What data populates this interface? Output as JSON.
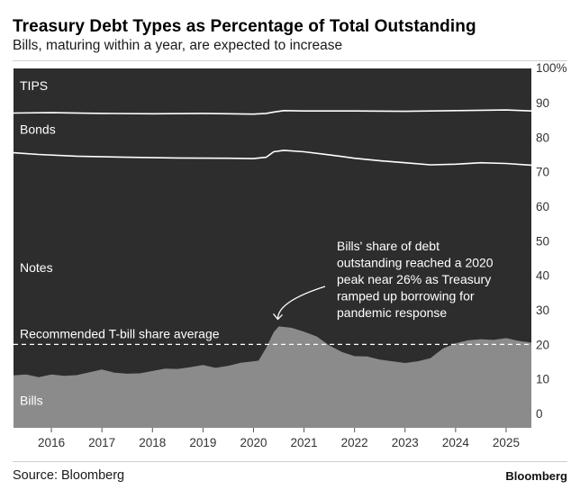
{
  "title": "Treasury Debt Types as Percentage of Total Outstanding",
  "subtitle": "Bills, maturing within a year, are expected to increase",
  "source": "Source: Bloomberg",
  "brand": "Bloomberg",
  "colors": {
    "background": "#2d2d2d",
    "bills_fill": "#8b8b8b",
    "lines": "#ffffff",
    "dashed_line": "#ffffff",
    "axis_text": "#333333",
    "plot_text": "#ffffff"
  },
  "chart_data": {
    "type": "area",
    "title": "Treasury Debt Types as Percentage of Total Outstanding",
    "subtitle": "Bills, maturing within a year, are expected to increase",
    "xlabel": "",
    "ylabel": "",
    "xlim": [
      2015.25,
      2025.5
    ],
    "ylim": [
      0,
      100
    ],
    "y_ticks": [
      {
        "value": 100,
        "label": "100%"
      },
      {
        "value": 90,
        "label": "90"
      },
      {
        "value": 80,
        "label": "80"
      },
      {
        "value": 70,
        "label": "70"
      },
      {
        "value": 60,
        "label": "60"
      },
      {
        "value": 50,
        "label": "50"
      },
      {
        "value": 40,
        "label": "40"
      },
      {
        "value": 30,
        "label": "30"
      },
      {
        "value": 20,
        "label": "20"
      },
      {
        "value": 10,
        "label": "10"
      },
      {
        "value": 0,
        "label": "0"
      }
    ],
    "x_ticks": [
      {
        "value": 2016,
        "label": "2016"
      },
      {
        "value": 2017,
        "label": "2017"
      },
      {
        "value": 2018,
        "label": "2018"
      },
      {
        "value": 2019,
        "label": "2019"
      },
      {
        "value": 2020,
        "label": "2020"
      },
      {
        "value": 2021,
        "label": "2021"
      },
      {
        "value": 2022,
        "label": "2022"
      },
      {
        "value": 2023,
        "label": "2023"
      },
      {
        "value": 2024,
        "label": "2024"
      },
      {
        "value": 2025,
        "label": "2025"
      }
    ],
    "series": [
      {
        "name": "Bills",
        "role": "area",
        "points": [
          [
            2015.25,
            11.0
          ],
          [
            2015.5,
            11.3
          ],
          [
            2015.75,
            10.5
          ],
          [
            2016.0,
            11.3
          ],
          [
            2016.25,
            10.9
          ],
          [
            2016.5,
            11.1
          ],
          [
            2016.75,
            11.9
          ],
          [
            2017.0,
            12.7
          ],
          [
            2017.25,
            11.8
          ],
          [
            2017.5,
            11.5
          ],
          [
            2017.75,
            11.6
          ],
          [
            2018.0,
            12.3
          ],
          [
            2018.25,
            13.0
          ],
          [
            2018.5,
            12.9
          ],
          [
            2018.75,
            13.4
          ],
          [
            2019.0,
            14.0
          ],
          [
            2019.25,
            13.2
          ],
          [
            2019.5,
            13.8
          ],
          [
            2019.75,
            14.7
          ],
          [
            2020.0,
            15.1
          ],
          [
            2020.1,
            15.3
          ],
          [
            2020.25,
            19.0
          ],
          [
            2020.4,
            23.5
          ],
          [
            2020.5,
            25.2
          ],
          [
            2020.75,
            24.8
          ],
          [
            2021.0,
            23.7
          ],
          [
            2021.25,
            22.3
          ],
          [
            2021.5,
            19.7
          ],
          [
            2021.75,
            17.8
          ],
          [
            2022.0,
            16.6
          ],
          [
            2022.25,
            16.5
          ],
          [
            2022.5,
            15.6
          ],
          [
            2022.75,
            15.1
          ],
          [
            2023.0,
            14.6
          ],
          [
            2023.25,
            15.1
          ],
          [
            2023.5,
            16.0
          ],
          [
            2023.75,
            18.8
          ],
          [
            2024.0,
            20.3
          ],
          [
            2024.25,
            21.2
          ],
          [
            2024.5,
            21.5
          ],
          [
            2024.75,
            21.3
          ],
          [
            2025.0,
            21.8
          ],
          [
            2025.25,
            21.0
          ],
          [
            2025.5,
            20.5
          ]
        ]
      },
      {
        "name": "Notes",
        "role": "line",
        "points": [
          [
            2015.25,
            75.5
          ],
          [
            2015.75,
            75.0
          ],
          [
            2016.5,
            74.5
          ],
          [
            2017.5,
            74.2
          ],
          [
            2018.5,
            74.0
          ],
          [
            2019.5,
            73.9
          ],
          [
            2020.0,
            73.8
          ],
          [
            2020.25,
            74.2
          ],
          [
            2020.4,
            75.8
          ],
          [
            2020.6,
            76.2
          ],
          [
            2021.0,
            75.8
          ],
          [
            2021.5,
            74.9
          ],
          [
            2022.0,
            73.9
          ],
          [
            2022.5,
            73.2
          ],
          [
            2023.0,
            72.6
          ],
          [
            2023.5,
            72.0
          ],
          [
            2024.0,
            72.2
          ],
          [
            2024.5,
            72.6
          ],
          [
            2025.0,
            72.4
          ],
          [
            2025.5,
            71.9
          ]
        ]
      },
      {
        "name": "Bonds",
        "role": "line",
        "points": [
          [
            2015.25,
            87.0
          ],
          [
            2016.0,
            87.1
          ],
          [
            2017.0,
            86.9
          ],
          [
            2018.0,
            86.8
          ],
          [
            2019.0,
            86.9
          ],
          [
            2020.0,
            86.7
          ],
          [
            2020.25,
            86.9
          ],
          [
            2020.4,
            87.3
          ],
          [
            2020.6,
            87.7
          ],
          [
            2021.0,
            87.6
          ],
          [
            2022.0,
            87.6
          ],
          [
            2023.0,
            87.5
          ],
          [
            2024.0,
            87.7
          ],
          [
            2025.0,
            87.9
          ],
          [
            2025.5,
            87.6
          ]
        ]
      }
    ],
    "region_labels": [
      {
        "text": "TIPS",
        "y": 93.7
      },
      {
        "text": "Bonds",
        "y": 81.0
      },
      {
        "text": "Notes",
        "y": 41.0
      },
      {
        "text": "Bills",
        "y": 2.5
      }
    ],
    "reference_line": {
      "label": "Recommended T-bill share average",
      "value": 20
    },
    "annotation": {
      "lines": [
        "Bills' share of debt",
        "outstanding reached a 2020",
        "peak near 26% as Treasury",
        "ramped up borrowing for",
        "pandemic response"
      ],
      "target": [
        2020.5,
        25.2
      ]
    }
  }
}
